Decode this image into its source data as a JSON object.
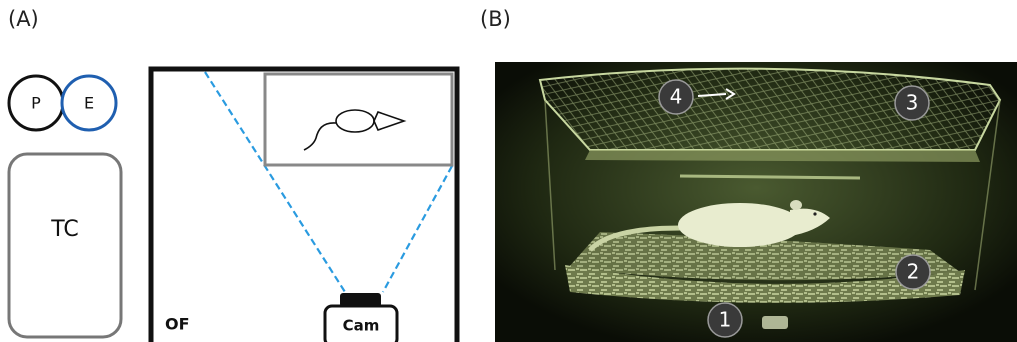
{
  "panel_a": {
    "label": "(A)",
    "probe": "P",
    "electrode": "E",
    "controller": "TC",
    "arena": "OF",
    "camera": "Cam"
  },
  "panel_b": {
    "label": "(B)",
    "markers": [
      "1",
      "2",
      "3",
      "4"
    ]
  }
}
